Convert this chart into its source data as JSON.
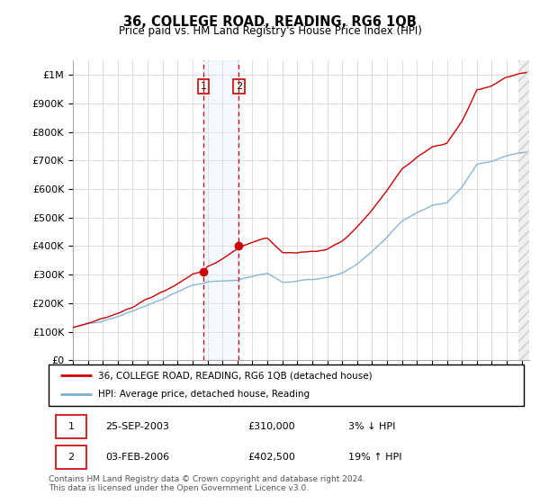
{
  "title": "36, COLLEGE ROAD, READING, RG6 1QB",
  "subtitle": "Price paid vs. HM Land Registry's House Price Index (HPI)",
  "ytick_values": [
    0,
    100000,
    200000,
    300000,
    400000,
    500000,
    600000,
    700000,
    800000,
    900000,
    1000000
  ],
  "ylim": [
    0,
    1050000
  ],
  "xlim_start": 1995.0,
  "xlim_end": 2025.5,
  "transaction1": {
    "date": 2003.73,
    "price": 310000,
    "label": "1",
    "date_str": "25-SEP-2003",
    "pct": "3%",
    "dir": "↓"
  },
  "transaction2": {
    "date": 2006.09,
    "price": 402500,
    "label": "2",
    "date_str": "03-FEB-2006",
    "pct": "19%",
    "dir": "↑"
  },
  "line_red_color": "#cc0000",
  "line_blue_color": "#7aafd4",
  "highlight_fill": "#ddeeff",
  "highlight_edge": "#cc0000",
  "marker_color": "#cc0000",
  "footer_text": "Contains HM Land Registry data © Crown copyright and database right 2024.\nThis data is licensed under the Open Government Licence v3.0.",
  "legend_label1": "36, COLLEGE ROAD, READING, RG6 1QB (detached house)",
  "legend_label2": "HPI: Average price, detached house, Reading",
  "table_row1": [
    "1",
    "25-SEP-2003",
    "£310,000",
    "3% ↓ HPI"
  ],
  "table_row2": [
    "2",
    "03-FEB-2006",
    "£402,500",
    "19% ↑ HPI"
  ]
}
